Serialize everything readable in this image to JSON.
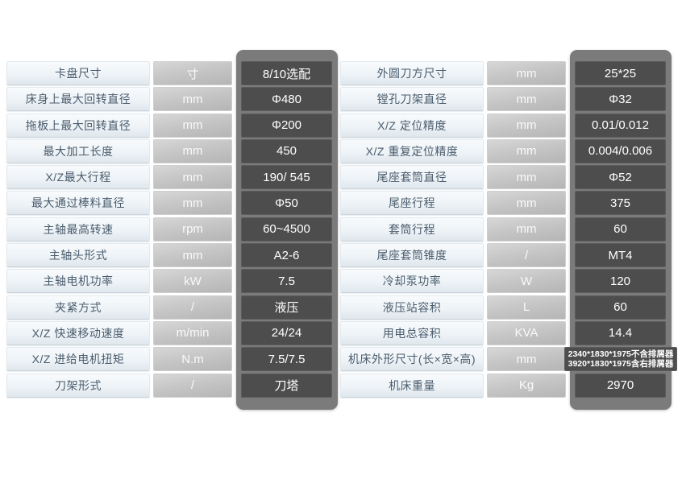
{
  "colors": {
    "panel_gray": "#7b7b7b",
    "value_cell_gray": "#4d4d4d",
    "label_text": "#4a5c6d",
    "unit_bg_top": "#d7d7d7",
    "unit_bg_bottom": "#b5b5b5",
    "label_bg_top": "#f8fbfd",
    "label_bg_bottom": "#dfe7ed"
  },
  "table": {
    "left_rows": [
      {
        "label": "卡盘尺寸",
        "unit": "寸",
        "value": "8/10选配"
      },
      {
        "label": "床身上最大回转直径",
        "unit": "mm",
        "value": "Φ480"
      },
      {
        "label": "拖板上最大回转直径",
        "unit": "mm",
        "value": "Φ200"
      },
      {
        "label": "最大加工长度",
        "unit": "mm",
        "value": "450"
      },
      {
        "label": "X/Z最大行程",
        "unit": "mm",
        "value": "190/ 545"
      },
      {
        "label": "最大通过棒料直径",
        "unit": "mm",
        "value": "Φ50"
      },
      {
        "label": "主轴最高转速",
        "unit": "rpm",
        "value": "60~4500"
      },
      {
        "label": "主轴头形式",
        "unit": "mm",
        "value": "A2-6"
      },
      {
        "label": "主轴电机功率",
        "unit": "kW",
        "value": "7.5"
      },
      {
        "label": "夹紧方式",
        "unit": "/",
        "value": "液压"
      },
      {
        "label": "X/Z 快速移动速度",
        "unit": "m/min",
        "value": "24/24"
      },
      {
        "label": "X/Z 进给电机扭矩",
        "unit": "N.m",
        "value": "7.5/7.5"
      },
      {
        "label": "刀架形式",
        "unit": "/",
        "value": "刀塔"
      }
    ],
    "right_rows": [
      {
        "label": "外圆刀方尺寸",
        "unit": "mm",
        "value": "25*25"
      },
      {
        "label": "镗孔刀架直径",
        "unit": "mm",
        "value": "Φ32"
      },
      {
        "label": "X/Z 定位精度",
        "unit": "mm",
        "value": "0.01/0.012"
      },
      {
        "label": "X/Z 重复定位精度",
        "unit": "mm",
        "value": "0.004/0.006"
      },
      {
        "label": "尾座套筒直径",
        "unit": "mm",
        "value": "Φ52"
      },
      {
        "label": "尾座行程",
        "unit": "mm",
        "value": "375"
      },
      {
        "label": "套筒行程",
        "unit": "mm",
        "value": "60"
      },
      {
        "label": "尾座套筒锥度",
        "unit": "/",
        "value": "MT4"
      },
      {
        "label": "冷却泵功率",
        "unit": "W",
        "value": "120"
      },
      {
        "label": "液压站容积",
        "unit": "L",
        "value": "60"
      },
      {
        "label": "用电总容积",
        "unit": "KVA",
        "value": "14.4"
      },
      {
        "label": "机床外形尺寸(长×宽×高)",
        "unit": "mm",
        "value": [
          "2340*1830*1975不含排屑器",
          "3920*1830*1975含右排屑器"
        ]
      },
      {
        "label": "机床重量",
        "unit": "Kg",
        "value": "2970"
      }
    ]
  }
}
